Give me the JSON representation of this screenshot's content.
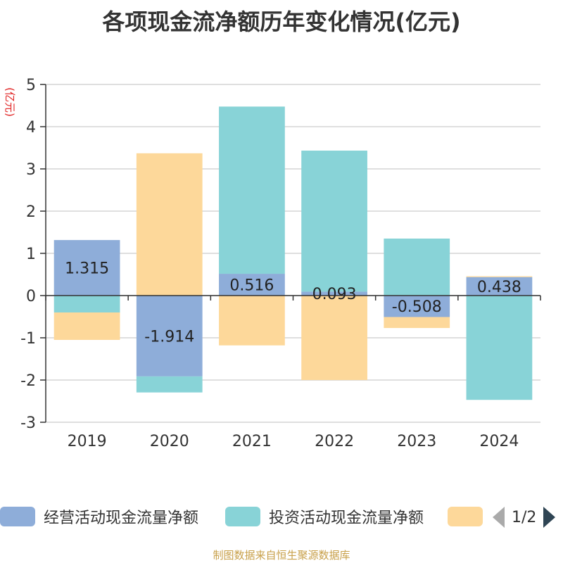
{
  "title": "各项现金流净额历年变化情况(亿元)",
  "source_note": "制图数据来自恒生聚源数据库",
  "legend": {
    "items": [
      {
        "label": "经营活动现金流量净额",
        "color": "#8eadd9"
      },
      {
        "label": "投资活动现金流量净额",
        "color": "#88d3d7"
      },
      {
        "label": "",
        "color": "#fdd89a"
      }
    ],
    "page_text": "1/2"
  },
  "chart_data": {
    "type": "bar",
    "stacked": true,
    "ylabel": "(亿元)",
    "ylim": [
      -3,
      5
    ],
    "yticks": [
      -3,
      -2,
      -1,
      0,
      1,
      2,
      3,
      4,
      5
    ],
    "grid": true,
    "legend_position": "bottom",
    "categories": [
      "2019",
      "2020",
      "2021",
      "2022",
      "2023",
      "2024"
    ],
    "series": [
      {
        "name": "经营活动现金流量净额",
        "color": "#8eadd9",
        "values": [
          1.315,
          -1.914,
          0.516,
          0.093,
          -0.508,
          0.438
        ],
        "labels": [
          "1.315",
          "-1.914",
          "0.516",
          "0.093",
          "-0.508",
          "0.438"
        ]
      },
      {
        "name": "投资活动现金流量净额",
        "color": "#88d3d7",
        "values": [
          -0.4,
          -0.38,
          3.96,
          3.34,
          1.35,
          -2.47
        ]
      },
      {
        "name": "",
        "color": "#fdd89a",
        "values": [
          -0.65,
          3.37,
          -1.18,
          -2.0,
          -0.26,
          0.02
        ]
      }
    ]
  }
}
